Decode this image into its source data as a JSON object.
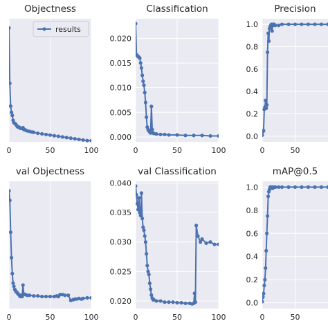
{
  "colors": {
    "series": "#4c72b0",
    "panel": "#eaeaf2",
    "text": "#262626"
  },
  "chart_data": [
    {
      "type": "line",
      "title": "Objectness",
      "xlim": [
        0,
        100
      ],
      "ylim": [
        0.0,
        0.02
      ],
      "xticks": [
        0,
        50,
        100
      ],
      "yticks": [],
      "yticklabels": [],
      "legend": {
        "label": "results",
        "position": "top-right"
      },
      "series": [
        {
          "x": [
            0,
            1,
            2,
            3,
            4,
            5,
            6,
            7,
            8,
            9,
            10,
            11,
            12,
            13,
            14,
            15,
            16,
            17,
            18,
            19,
            20,
            22,
            25,
            28,
            30,
            35,
            40,
            45,
            50,
            55,
            60,
            65,
            70,
            75,
            80,
            85,
            90,
            95,
            100
          ],
          "y": [
            0.0185,
            0.0095,
            0.0058,
            0.0048,
            0.0043,
            0.0035,
            0.0031,
            0.003,
            0.0029,
            0.0027,
            0.0025,
            0.0024,
            0.0024,
            0.0023,
            0.0022,
            0.0022,
            0.0022,
            0.0023,
            0.002,
            0.002,
            0.0019,
            0.0018,
            0.0017,
            0.0016,
            0.00155,
            0.0014,
            0.0013,
            0.0012,
            0.0011,
            0.001,
            0.0009,
            0.0008,
            0.0007,
            0.0006,
            0.0005,
            0.0004,
            0.0003,
            0.0002,
            0.0002
          ]
        }
      ]
    },
    {
      "type": "line",
      "title": "Classification",
      "xlim": [
        0,
        100
      ],
      "ylim": [
        -0.001,
        0.024
      ],
      "xticks": [
        0,
        50,
        100
      ],
      "yticks": [
        0.0,
        0.005,
        0.01,
        0.015,
        0.02
      ],
      "yticklabels": [
        "0.000",
        "0.005",
        "0.010",
        "0.015",
        "0.020"
      ],
      "series": [
        {
          "x": [
            0,
            1,
            2,
            3,
            4,
            5,
            6,
            7,
            8,
            9,
            10,
            11,
            12,
            13,
            14,
            15,
            16,
            17,
            18,
            19,
            20,
            21,
            22,
            25,
            30,
            35,
            40,
            50,
            60,
            70,
            80,
            90,
            100
          ],
          "y": [
            0.023,
            0.0167,
            0.0165,
            0.0163,
            0.0162,
            0.016,
            0.015,
            0.014,
            0.0125,
            0.0113,
            0.0105,
            0.009,
            0.007,
            0.004,
            0.002,
            0.0015,
            0.0012,
            0.001,
            0.0008,
            0.0062,
            0.0015,
            0.0008,
            0.0007,
            0.0006,
            0.0005,
            0.0005,
            0.0004,
            0.0004,
            0.0003,
            0.0003,
            0.0003,
            0.0002,
            0.0002
          ]
        }
      ]
    },
    {
      "type": "line",
      "title": "Precision",
      "xlim": [
        0,
        100
      ],
      "ylim": [
        -0.05,
        1.05
      ],
      "xticks": [
        0,
        50
      ],
      "yticks": [
        0.0,
        0.2,
        0.4,
        0.6,
        0.8,
        1.0
      ],
      "yticklabels": [
        "0.0",
        "0.2",
        "0.4",
        "0.6",
        "0.8",
        "1.0"
      ],
      "series": [
        {
          "x": [
            0,
            1,
            2,
            3,
            4,
            5,
            6,
            7,
            8,
            9,
            10,
            11,
            12,
            13,
            14,
            15,
            16,
            17,
            18,
            20,
            25,
            30,
            40,
            50,
            60,
            70,
            80,
            90,
            100
          ],
          "y": [
            0.01,
            0.04,
            0.05,
            0.24,
            0.26,
            0.32,
            0.25,
            0.28,
            0.75,
            0.92,
            0.85,
            0.96,
            0.98,
            0.99,
            1.0,
            0.94,
            1.0,
            0.99,
            1.0,
            0.99,
            0.99,
            1.0,
            1.0,
            1.0,
            1.0,
            1.0,
            1.0,
            1.0,
            1.0
          ]
        }
      ]
    },
    {
      "type": "line",
      "title": "val Objectness",
      "xlim": [
        0,
        100
      ],
      "ylim": [
        0.0,
        0.02
      ],
      "xticks": [
        0,
        50,
        100
      ],
      "yticks": [],
      "yticklabels": [],
      "series": [
        {
          "x": [
            0,
            1,
            2,
            3,
            4,
            5,
            6,
            7,
            8,
            9,
            10,
            11,
            12,
            13,
            14,
            15,
            16,
            17,
            18,
            20,
            22,
            25,
            30,
            35,
            40,
            45,
            50,
            55,
            58,
            60,
            62,
            65,
            68,
            72,
            75,
            78,
            80,
            82,
            85,
            88,
            90,
            95,
            100
          ],
          "y": [
            0.0185,
            0.017,
            0.012,
            0.008,
            0.0055,
            0.004,
            0.0035,
            0.003,
            0.0028,
            0.0026,
            0.0025,
            0.0023,
            0.0022,
            0.002,
            0.0019,
            0.0021,
            0.0019,
            0.0037,
            0.0023,
            0.0022,
            0.0021,
            0.0021,
            0.002,
            0.002,
            0.0019,
            0.0019,
            0.0019,
            0.0019,
            0.002,
            0.0019,
            0.0022,
            0.0022,
            0.0021,
            0.0021,
            0.0013,
            0.0014,
            0.0015,
            0.0015,
            0.0016,
            0.0015,
            0.0016,
            0.0017,
            0.0017
          ]
        }
      ]
    },
    {
      "type": "line",
      "title": "val Classification",
      "xlim": [
        0,
        100
      ],
      "ylim": [
        0.0187,
        0.0403
      ],
      "xticks": [
        0,
        50,
        100
      ],
      "yticks": [
        0.02,
        0.025,
        0.03,
        0.035,
        0.04
      ],
      "yticklabels": [
        "0.020",
        "0.025",
        "0.030",
        "0.035",
        "0.040"
      ],
      "series": [
        {
          "x": [
            0,
            1,
            2,
            3,
            4,
            5,
            6,
            7,
            8,
            9,
            10,
            11,
            12,
            13,
            14,
            15,
            16,
            17,
            18,
            19,
            20,
            21,
            22,
            25,
            30,
            35,
            40,
            45,
            50,
            55,
            60,
            65,
            68,
            70,
            71,
            72,
            73,
            75,
            78,
            80,
            85,
            90,
            95,
            100
          ],
          "y": [
            0.0395,
            0.038,
            0.0365,
            0.0355,
            0.0375,
            0.035,
            0.0345,
            0.0383,
            0.034,
            0.0325,
            0.032,
            0.031,
            0.03,
            0.028,
            0.026,
            0.025,
            0.0245,
            0.023,
            0.022,
            0.021,
            0.0205,
            0.0202,
            0.0202,
            0.02,
            0.02,
            0.0198,
            0.0198,
            0.0198,
            0.0197,
            0.0197,
            0.0196,
            0.0196,
            0.0195,
            0.0196,
            0.0213,
            0.0198,
            0.0328,
            0.031,
            0.03,
            0.0305,
            0.0298,
            0.03,
            0.0296,
            0.0296
          ]
        }
      ]
    },
    {
      "type": "line",
      "title": "mAP@0.5",
      "xlim": [
        0,
        100
      ],
      "ylim": [
        -0.05,
        1.05
      ],
      "xticks": [
        0,
        50
      ],
      "yticks": [
        0.0,
        0.2,
        0.4,
        0.6,
        0.8,
        1.0
      ],
      "yticklabels": [
        "0.0",
        "0.2",
        "0.4",
        "0.6",
        "0.8",
        "1.0"
      ],
      "series": [
        {
          "x": [
            0,
            1,
            2,
            3,
            4,
            5,
            6,
            7,
            8,
            9,
            10,
            11,
            12,
            13,
            14,
            15,
            16,
            17,
            18,
            20,
            25,
            30,
            40,
            50,
            60,
            70,
            80,
            90,
            100
          ],
          "y": [
            0.01,
            0.05,
            0.08,
            0.15,
            0.2,
            0.3,
            0.45,
            0.6,
            0.75,
            0.92,
            0.96,
            0.98,
            1.0,
            0.99,
            1.0,
            1.0,
            0.99,
            1.0,
            1.0,
            1.0,
            1.0,
            1.0,
            1.0,
            1.0,
            1.0,
            1.0,
            1.0,
            1.0,
            1.0
          ]
        }
      ]
    }
  ]
}
